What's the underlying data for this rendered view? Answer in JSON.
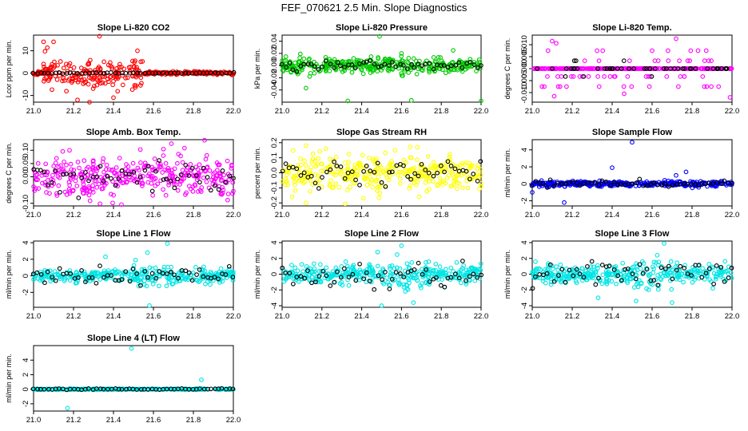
{
  "page_title": "FEF_070621  2.5 Min. Slope Diagnostics",
  "chart_data": [
    {
      "type": "scatter",
      "title": "Slope Li-820 CO2",
      "ylabel": "Lcor ppm per min.",
      "color": "#ff0000",
      "xlim": [
        21.0,
        22.0
      ],
      "ylim": [
        -13,
        17
      ],
      "xticks": [
        21.0,
        21.2,
        21.4,
        21.6,
        21.8,
        22.0
      ],
      "yticks": [
        -10,
        0,
        10
      ],
      "ytick_labels": [
        "-10",
        "0",
        "10"
      ],
      "noise": 3.2,
      "outliers": [
        [
          21.05,
          14
        ],
        [
          21.1,
          14
        ],
        [
          21.33,
          16.5
        ],
        [
          21.22,
          -12
        ],
        [
          21.28,
          -13
        ],
        [
          21.4,
          -11
        ],
        [
          21.52,
          10
        ]
      ],
      "black_noise": 0.3,
      "seed": 11
    },
    {
      "type": "scatter",
      "title": "Slope Li-820 Pressure",
      "ylabel": "kPa per min.",
      "color": "#00cc00",
      "xlim": [
        21.0,
        22.0
      ],
      "ylim": [
        -0.06,
        0.05
      ],
      "xticks": [
        21.0,
        21.2,
        21.4,
        21.6,
        21.8,
        22.0
      ],
      "yticks": [
        -0.04,
        -0.02,
        0.0,
        0.02,
        0.04
      ],
      "ytick_labels": [
        "-0.04",
        "-0.02",
        "0.00",
        "0.02",
        "0.04"
      ],
      "noise": 0.006,
      "outliers": [
        [
          21.49,
          0.048
        ],
        [
          21.12,
          -0.037
        ],
        [
          21.33,
          -0.058
        ],
        [
          21.65,
          -0.057
        ],
        [
          22.0,
          -0.058
        ],
        [
          21.86,
          0.025
        ],
        [
          21.6,
          0.02
        ]
      ],
      "black_noise": 0.004,
      "seed": 22
    },
    {
      "type": "quantized",
      "title": "Slope Li-820 Temp.",
      "ylabel": "degrees C per min.",
      "color": "#ff00ff",
      "xlim": [
        21.0,
        22.0
      ],
      "ylim": [
        -0.014,
        0.014
      ],
      "xticks": [
        21.0,
        21.2,
        21.4,
        21.6,
        21.8,
        22.0
      ],
      "yticks": [
        -0.01,
        -0.005,
        0.0,
        0.005,
        0.01
      ],
      "ytick_labels": [
        "-0.010",
        "-0.005",
        "0.000",
        "0.005",
        "0.010"
      ],
      "levels": [
        -0.0075,
        -0.0033,
        0.0,
        0.0033,
        0.0075
      ],
      "outliers": [
        [
          21.1,
          0.0115
        ],
        [
          21.72,
          0.0125
        ],
        [
          21.11,
          -0.0115
        ],
        [
          21.46,
          -0.0105
        ],
        [
          21.99,
          -0.012
        ],
        [
          21.12,
          0.0106
        ]
      ],
      "seed": 33
    },
    {
      "type": "scatter",
      "title": "Slope Amb. Box Temp.",
      "ylabel": "degrees C per min.",
      "color": "#ff00ff",
      "xlim": [
        21.0,
        22.0
      ],
      "ylim": [
        -0.11,
        0.14
      ],
      "xticks": [
        21.0,
        21.2,
        21.4,
        21.6,
        21.8,
        22.0
      ],
      "yticks": [
        -0.1,
        0.0,
        0.05,
        0.1
      ],
      "ytick_labels": [
        "-0.10",
        "0.00",
        "0.05",
        "0.10"
      ],
      "noise": 0.04,
      "outliers": [
        [
          21.69,
          0.125
        ],
        [
          21.44,
          -0.105
        ],
        [
          21.18,
          0.1
        ]
      ],
      "black_noise": 0.03,
      "seed": 44
    },
    {
      "type": "scatter",
      "title": "Slope Gas Stream RH",
      "ylabel": "percent per min.",
      "color": "#ffff00",
      "xlim": [
        21.0,
        22.0
      ],
      "ylim": [
        -0.22,
        0.22
      ],
      "xticks": [
        21.0,
        21.2,
        21.4,
        21.6,
        21.8,
        22.0
      ],
      "yticks": [
        -0.2,
        -0.1,
        0.0,
        0.1,
        0.2
      ],
      "ytick_labels": [
        "-0.2",
        "-0.1",
        "0.0",
        "0.1",
        "0.2"
      ],
      "noise": 0.06,
      "outliers": [
        [
          21.12,
          -0.2
        ],
        [
          21.12,
          0.18
        ],
        [
          21.22,
          0.16
        ],
        [
          21.68,
          0.17
        ]
      ],
      "black_noise": 0.05,
      "seed": 55
    },
    {
      "type": "scatter",
      "title": "Slope Sample Flow",
      "ylabel": "ml/min per min.",
      "color": "#0000ff",
      "xlim": [
        21.0,
        22.0
      ],
      "ylim": [
        -2.6,
        5.2
      ],
      "xticks": [
        21.0,
        21.2,
        21.4,
        21.6,
        21.8,
        22.0
      ],
      "yticks": [
        -2,
        0,
        2,
        4
      ],
      "ytick_labels": [
        "-2",
        "0",
        "2",
        "4"
      ],
      "noise": 0.3,
      "outliers": [
        [
          21.5,
          4.9
        ],
        [
          21.16,
          -2.2
        ],
        [
          21.4,
          1.9
        ],
        [
          21.77,
          1.4
        ],
        [
          21.72,
          1.0
        ],
        [
          21.0,
          -1.0
        ]
      ],
      "black_noise": 0.25,
      "seed": 66
    },
    {
      "type": "scatter",
      "title": "Slope Line 1 Flow",
      "ylabel": "ml/min per min.",
      "color": "#00e5e5",
      "xlim": [
        21.0,
        22.0
      ],
      "ylim": [
        -3.8,
        4.2
      ],
      "xticks": [
        21.0,
        21.2,
        21.4,
        21.6,
        21.8,
        22.0
      ],
      "yticks": [
        -2,
        0,
        2,
        4
      ],
      "ytick_labels": [
        "-2",
        "0",
        "2",
        "4"
      ],
      "noise": 0.7,
      "outliers": [
        [
          21.58,
          -3.6
        ],
        [
          21.67,
          3.9
        ],
        [
          21.57,
          2.8
        ],
        [
          21.36,
          2.3
        ]
      ],
      "black_noise": 0.5,
      "seed": 77
    },
    {
      "type": "scatter",
      "title": "Slope Line 2 Flow",
      "ylabel": "ml/min per min.",
      "color": "#00e5e5",
      "xlim": [
        21.0,
        22.0
      ],
      "ylim": [
        -4.2,
        4.2
      ],
      "xticks": [
        21.0,
        21.2,
        21.4,
        21.6,
        21.8,
        22.0
      ],
      "yticks": [
        -4,
        -2,
        0,
        2,
        4
      ],
      "ytick_labels": [
        "-4",
        "-2",
        "0",
        "2",
        "4"
      ],
      "noise": 1.0,
      "outliers": [
        [
          21.6,
          3.6
        ],
        [
          21.5,
          -4.0
        ],
        [
          21.66,
          -3.6
        ],
        [
          21.48,
          2.8
        ]
      ],
      "black_noise": 0.8,
      "seed": 88
    },
    {
      "type": "scatter",
      "title": "Slope Line 3 Flow",
      "ylabel": "ml/min per min.",
      "color": "#00e5e5",
      "xlim": [
        21.0,
        22.0
      ],
      "ylim": [
        -4.2,
        4.2
      ],
      "xticks": [
        21.0,
        21.2,
        21.4,
        21.6,
        21.8,
        22.0
      ],
      "yticks": [
        -4,
        -2,
        0,
        2,
        4
      ],
      "ytick_labels": [
        "-4",
        "-2",
        "0",
        "2",
        "4"
      ],
      "noise": 1.0,
      "outliers": [
        [
          21.66,
          3.9
        ],
        [
          21.7,
          -3.6
        ],
        [
          21.52,
          -3.4
        ],
        [
          21.33,
          -3.0
        ]
      ],
      "black_noise": 0.8,
      "seed": 99
    },
    {
      "type": "scatter",
      "title": "Slope Line 4 (LT) Flow",
      "ylabel": "ml/min per min.",
      "color": "#00e5e5",
      "xlim": [
        21.0,
        22.0
      ],
      "ylim": [
        -3.0,
        6.0
      ],
      "xticks": [
        21.0,
        21.2,
        21.4,
        21.6,
        21.8,
        22.0
      ],
      "yticks": [
        -2,
        0,
        2,
        4
      ],
      "ytick_labels": [
        "-2",
        "0",
        "2",
        "4"
      ],
      "noise": 0.06,
      "outliers": [
        [
          21.49,
          5.6
        ],
        [
          21.17,
          -2.6
        ],
        [
          21.84,
          1.3
        ]
      ],
      "black_noise": 0.04,
      "seed": 111
    }
  ]
}
